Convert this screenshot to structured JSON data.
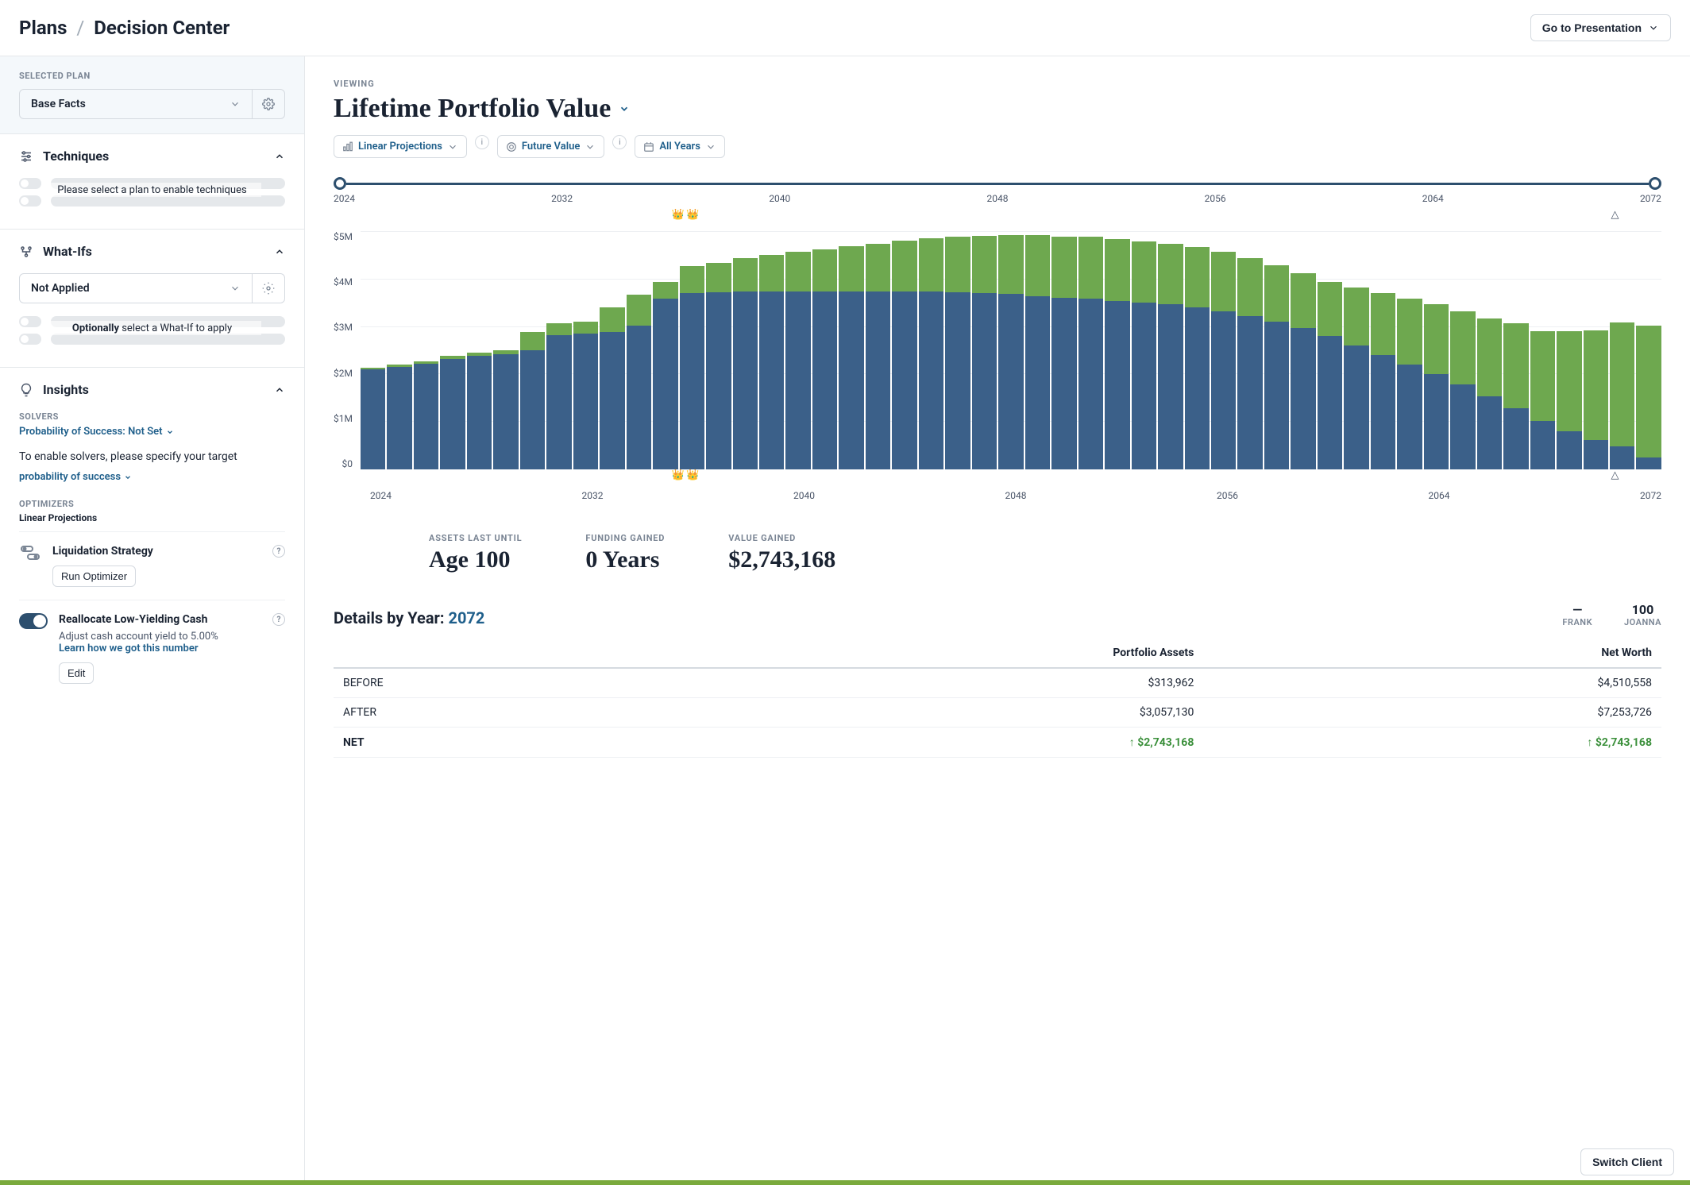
{
  "breadcrumb": {
    "parent": "Plans",
    "current": "Decision Center"
  },
  "topbar": {
    "presentation_btn": "Go to Presentation"
  },
  "sidebar": {
    "selected_plan_label": "SELECTED PLAN",
    "plan_name": "Base Facts",
    "techniques": {
      "title": "Techniques",
      "hint": "Please select a plan to enable techniques"
    },
    "whatifs": {
      "title": "What-Ifs",
      "select_value": "Not Applied",
      "hint_bold": "Optionally",
      "hint_rest": " select a What-If to apply"
    },
    "insights": {
      "title": "Insights",
      "solvers_label": "SOLVERS",
      "solvers_value": "Probability of Success: Not Set",
      "enable_note": "To enable solvers, please specify your target",
      "prob_link": "probability of success",
      "optimizers_label": "OPTIMIZERS",
      "optimizers_sub": "Linear Projections",
      "liquidation": {
        "title": "Liquidation Strategy",
        "run_btn": "Run Optimizer"
      },
      "reallocate": {
        "title": "Reallocate Low-Yielding Cash",
        "desc": "Adjust cash account yield to 5.00%",
        "link": "Learn how we got this number",
        "edit_btn": "Edit"
      }
    }
  },
  "content": {
    "viewing_label": "VIEWING",
    "title": "Lifetime Portfolio Value",
    "filters": {
      "projections": "Linear Projections",
      "future_value": "Future Value",
      "years": "All Years"
    },
    "timeline": {
      "start": 2024,
      "end": 2072,
      "ticks": [
        "2024",
        "2032",
        "2040",
        "2048",
        "2056",
        "2064",
        "2072"
      ]
    },
    "chart": {
      "type": "stacked-bar",
      "y_ticks": [
        "$5M",
        "$4M",
        "$3M",
        "$2M",
        "$1M",
        "$0"
      ],
      "y_max": 5000000,
      "x_ticks": [
        "2024",
        "2032",
        "2040",
        "2048",
        "2056",
        "2064",
        "2072"
      ],
      "colors": {
        "base": "#3b6089",
        "gain": "#6ea84f",
        "grid": "#eef0f3",
        "bg": "#ffffff"
      },
      "marker_left_pct": 26.5,
      "marker_right_pct": 96.5,
      "years": [
        2024,
        2025,
        2026,
        2027,
        2028,
        2029,
        2030,
        2031,
        2032,
        2033,
        2034,
        2035,
        2036,
        2037,
        2038,
        2039,
        2040,
        2041,
        2042,
        2043,
        2044,
        2045,
        2046,
        2047,
        2048,
        2049,
        2050,
        2051,
        2052,
        2053,
        2054,
        2055,
        2056,
        2057,
        2058,
        2059,
        2060,
        2061,
        2062,
        2063,
        2064,
        2065,
        2066,
        2067,
        2068,
        2069,
        2070,
        2071,
        2072
      ],
      "base": [
        2100000,
        2150000,
        2220000,
        2320000,
        2380000,
        2420000,
        2500000,
        2820000,
        2850000,
        2880000,
        3020000,
        3580000,
        3700000,
        3720000,
        3740000,
        3740000,
        3740000,
        3740000,
        3740000,
        3740000,
        3740000,
        3740000,
        3720000,
        3700000,
        3680000,
        3640000,
        3600000,
        3580000,
        3540000,
        3500000,
        3460000,
        3400000,
        3320000,
        3220000,
        3100000,
        2960000,
        2800000,
        2600000,
        2400000,
        2200000,
        2000000,
        1780000,
        1540000,
        1280000,
        1020000,
        800000,
        620000,
        480000,
        250000
      ],
      "gain": [
        40000,
        45000,
        50000,
        60000,
        70000,
        80000,
        380000,
        240000,
        250000,
        520000,
        640000,
        360000,
        560000,
        620000,
        700000,
        760000,
        820000,
        880000,
        940000,
        1000000,
        1060000,
        1110000,
        1160000,
        1200000,
        1240000,
        1270000,
        1290000,
        1300000,
        1300000,
        1290000,
        1280000,
        1260000,
        1240000,
        1210000,
        1180000,
        1160000,
        1140000,
        1220000,
        1300000,
        1380000,
        1460000,
        1540000,
        1620000,
        1780000,
        1880000,
        2100000,
        2300000,
        2600000,
        2760000
      ]
    },
    "metrics": {
      "assets_label": "ASSETS LAST UNTIL",
      "assets_value": "Age 100",
      "funding_label": "FUNDING GAINED",
      "funding_value": "0 Years",
      "value_label": "VALUE GAINED",
      "value_value": "$2,743,168"
    },
    "details": {
      "title_prefix": "Details by Year: ",
      "year": "2072",
      "ages": [
        {
          "value": "—",
          "name": "FRANK"
        },
        {
          "value": "100",
          "name": "JOANNA"
        }
      ],
      "columns": [
        "",
        "Portfolio Assets",
        "Net Worth"
      ],
      "rows": [
        {
          "label": "BEFORE",
          "assets": "$313,962",
          "networth": "$4,510,558",
          "cls": ""
        },
        {
          "label": "AFTER",
          "assets": "$3,057,130",
          "networth": "$7,253,726",
          "cls": ""
        },
        {
          "label": "NET",
          "assets": "$2,743,168",
          "networth": "$2,743,168",
          "cls": "net pos"
        }
      ]
    }
  },
  "switch_client": "Switch Client"
}
